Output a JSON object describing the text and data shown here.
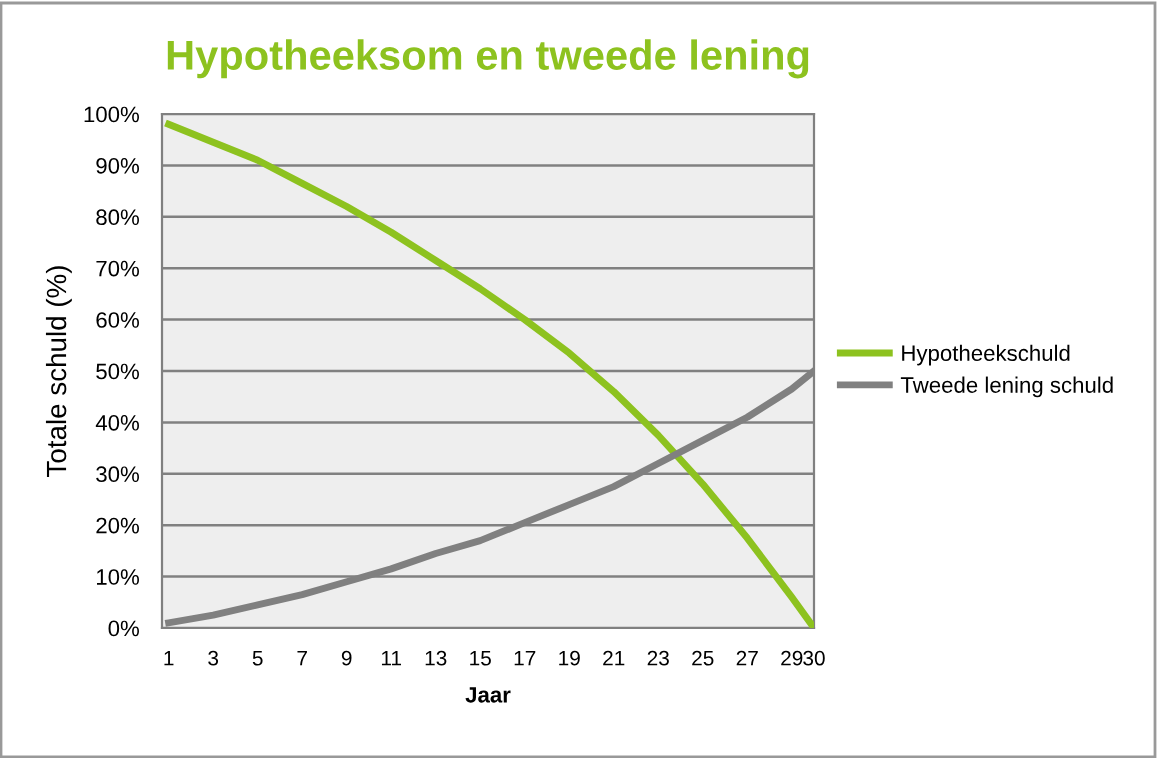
{
  "chart_data": {
    "type": "line",
    "title": "Hypotheeksom en tweede lening",
    "xlabel": "Jaar",
    "ylabel": "Totale schuld (%)",
    "x": [
      1,
      3,
      5,
      7,
      9,
      11,
      13,
      15,
      17,
      19,
      21,
      23,
      25,
      27,
      29,
      30
    ],
    "series": [
      {
        "name": "Hypotheekschuld",
        "color": "#8dc21f",
        "values": [
          98,
          94.5,
          91,
          86.5,
          82,
          77,
          71.5,
          66,
          60,
          53.5,
          46,
          37.5,
          28,
          17.5,
          6,
          0
        ]
      },
      {
        "name": "Tweede lening schuld",
        "color": "#808080",
        "values": [
          1,
          2.5,
          4.5,
          6.5,
          9,
          11.5,
          14.5,
          17,
          20.5,
          24,
          27.5,
          32,
          36.5,
          41,
          46.5,
          50
        ]
      }
    ],
    "xlim": [
      0.7,
      30
    ],
    "xticks": [
      1,
      3,
      5,
      7,
      9,
      11,
      13,
      15,
      17,
      19,
      21,
      23,
      25,
      27,
      29,
      30
    ],
    "ylim": [
      0,
      100
    ],
    "yticks": [
      {
        "value": 0,
        "label": "0%"
      },
      {
        "value": 10,
        "label": "10%"
      },
      {
        "value": 20,
        "label": "20%"
      },
      {
        "value": 30,
        "label": "30%"
      },
      {
        "value": 40,
        "label": "40%"
      },
      {
        "value": 50,
        "label": "50%"
      },
      {
        "value": 60,
        "label": "60%"
      },
      {
        "value": 70,
        "label": "70%"
      },
      {
        "value": 80,
        "label": "80%"
      },
      {
        "value": 90,
        "label": "90%"
      },
      {
        "value": 100,
        "label": "100%"
      }
    ],
    "grid": "y",
    "legend": "right",
    "marker": "none",
    "line_style": "solid"
  }
}
